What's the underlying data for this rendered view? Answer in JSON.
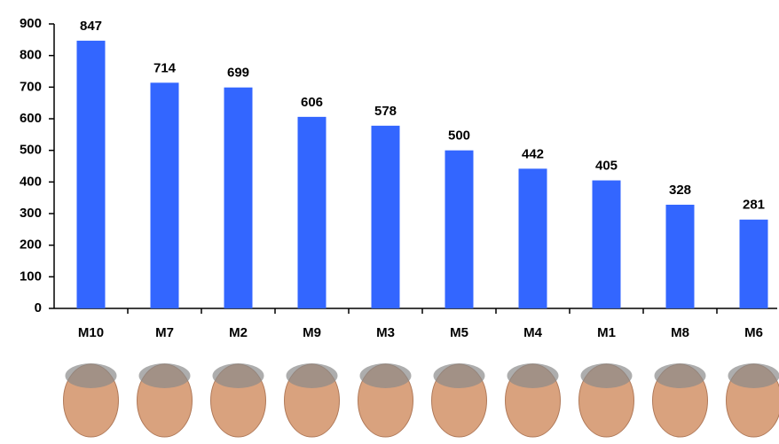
{
  "chart_data": {
    "type": "bar",
    "categories": [
      "M10",
      "M7",
      "M2",
      "M9",
      "M3",
      "M5",
      "M4",
      "M1",
      "M8",
      "M6"
    ],
    "values": [
      847,
      714,
      699,
      606,
      578,
      500,
      442,
      405,
      328,
      281
    ],
    "color": "#3366ff",
    "ylim": [
      0,
      900
    ],
    "yticks": [
      0,
      100,
      200,
      300,
      400,
      500,
      600,
      700,
      800,
      900
    ],
    "grid": false
  }
}
